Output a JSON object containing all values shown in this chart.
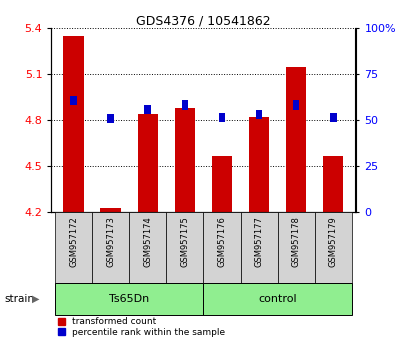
{
  "title": "GDS4376 / 10541862",
  "samples": [
    "GSM957172",
    "GSM957173",
    "GSM957174",
    "GSM957175",
    "GSM957176",
    "GSM957177",
    "GSM957178",
    "GSM957179"
  ],
  "red_values": [
    5.35,
    4.23,
    4.84,
    4.88,
    4.57,
    4.82,
    5.15,
    4.57
  ],
  "blue_values": [
    4.93,
    4.81,
    4.87,
    4.9,
    4.82,
    4.84,
    4.9,
    4.82
  ],
  "ylim_left": [
    4.2,
    5.4
  ],
  "ylim_right": [
    0,
    100
  ],
  "yticks_left": [
    4.2,
    4.5,
    4.8,
    5.1,
    5.4
  ],
  "yticks_right": [
    0,
    25,
    50,
    75,
    100
  ],
  "ytick_labels_right": [
    "0",
    "25",
    "50",
    "75",
    "100%"
  ],
  "bar_color_red": "#CC0000",
  "bar_color_blue": "#0000CC",
  "bar_bottom": 4.2,
  "bar_width": 0.55,
  "blue_bar_width": 0.18,
  "blue_bar_height": 0.06,
  "grid_color": "black",
  "background_color": "#ffffff",
  "legend_red": "transformed count",
  "legend_blue": "percentile rank within the sample",
  "xlabel_strain": "strain",
  "group1_label": "Ts65Dn",
  "group2_label": "control",
  "group_color": "#90EE90",
  "sample_box_color": "#d3d3d3",
  "n_samples": 8,
  "group1_range": [
    0,
    3
  ],
  "group2_range": [
    4,
    7
  ]
}
